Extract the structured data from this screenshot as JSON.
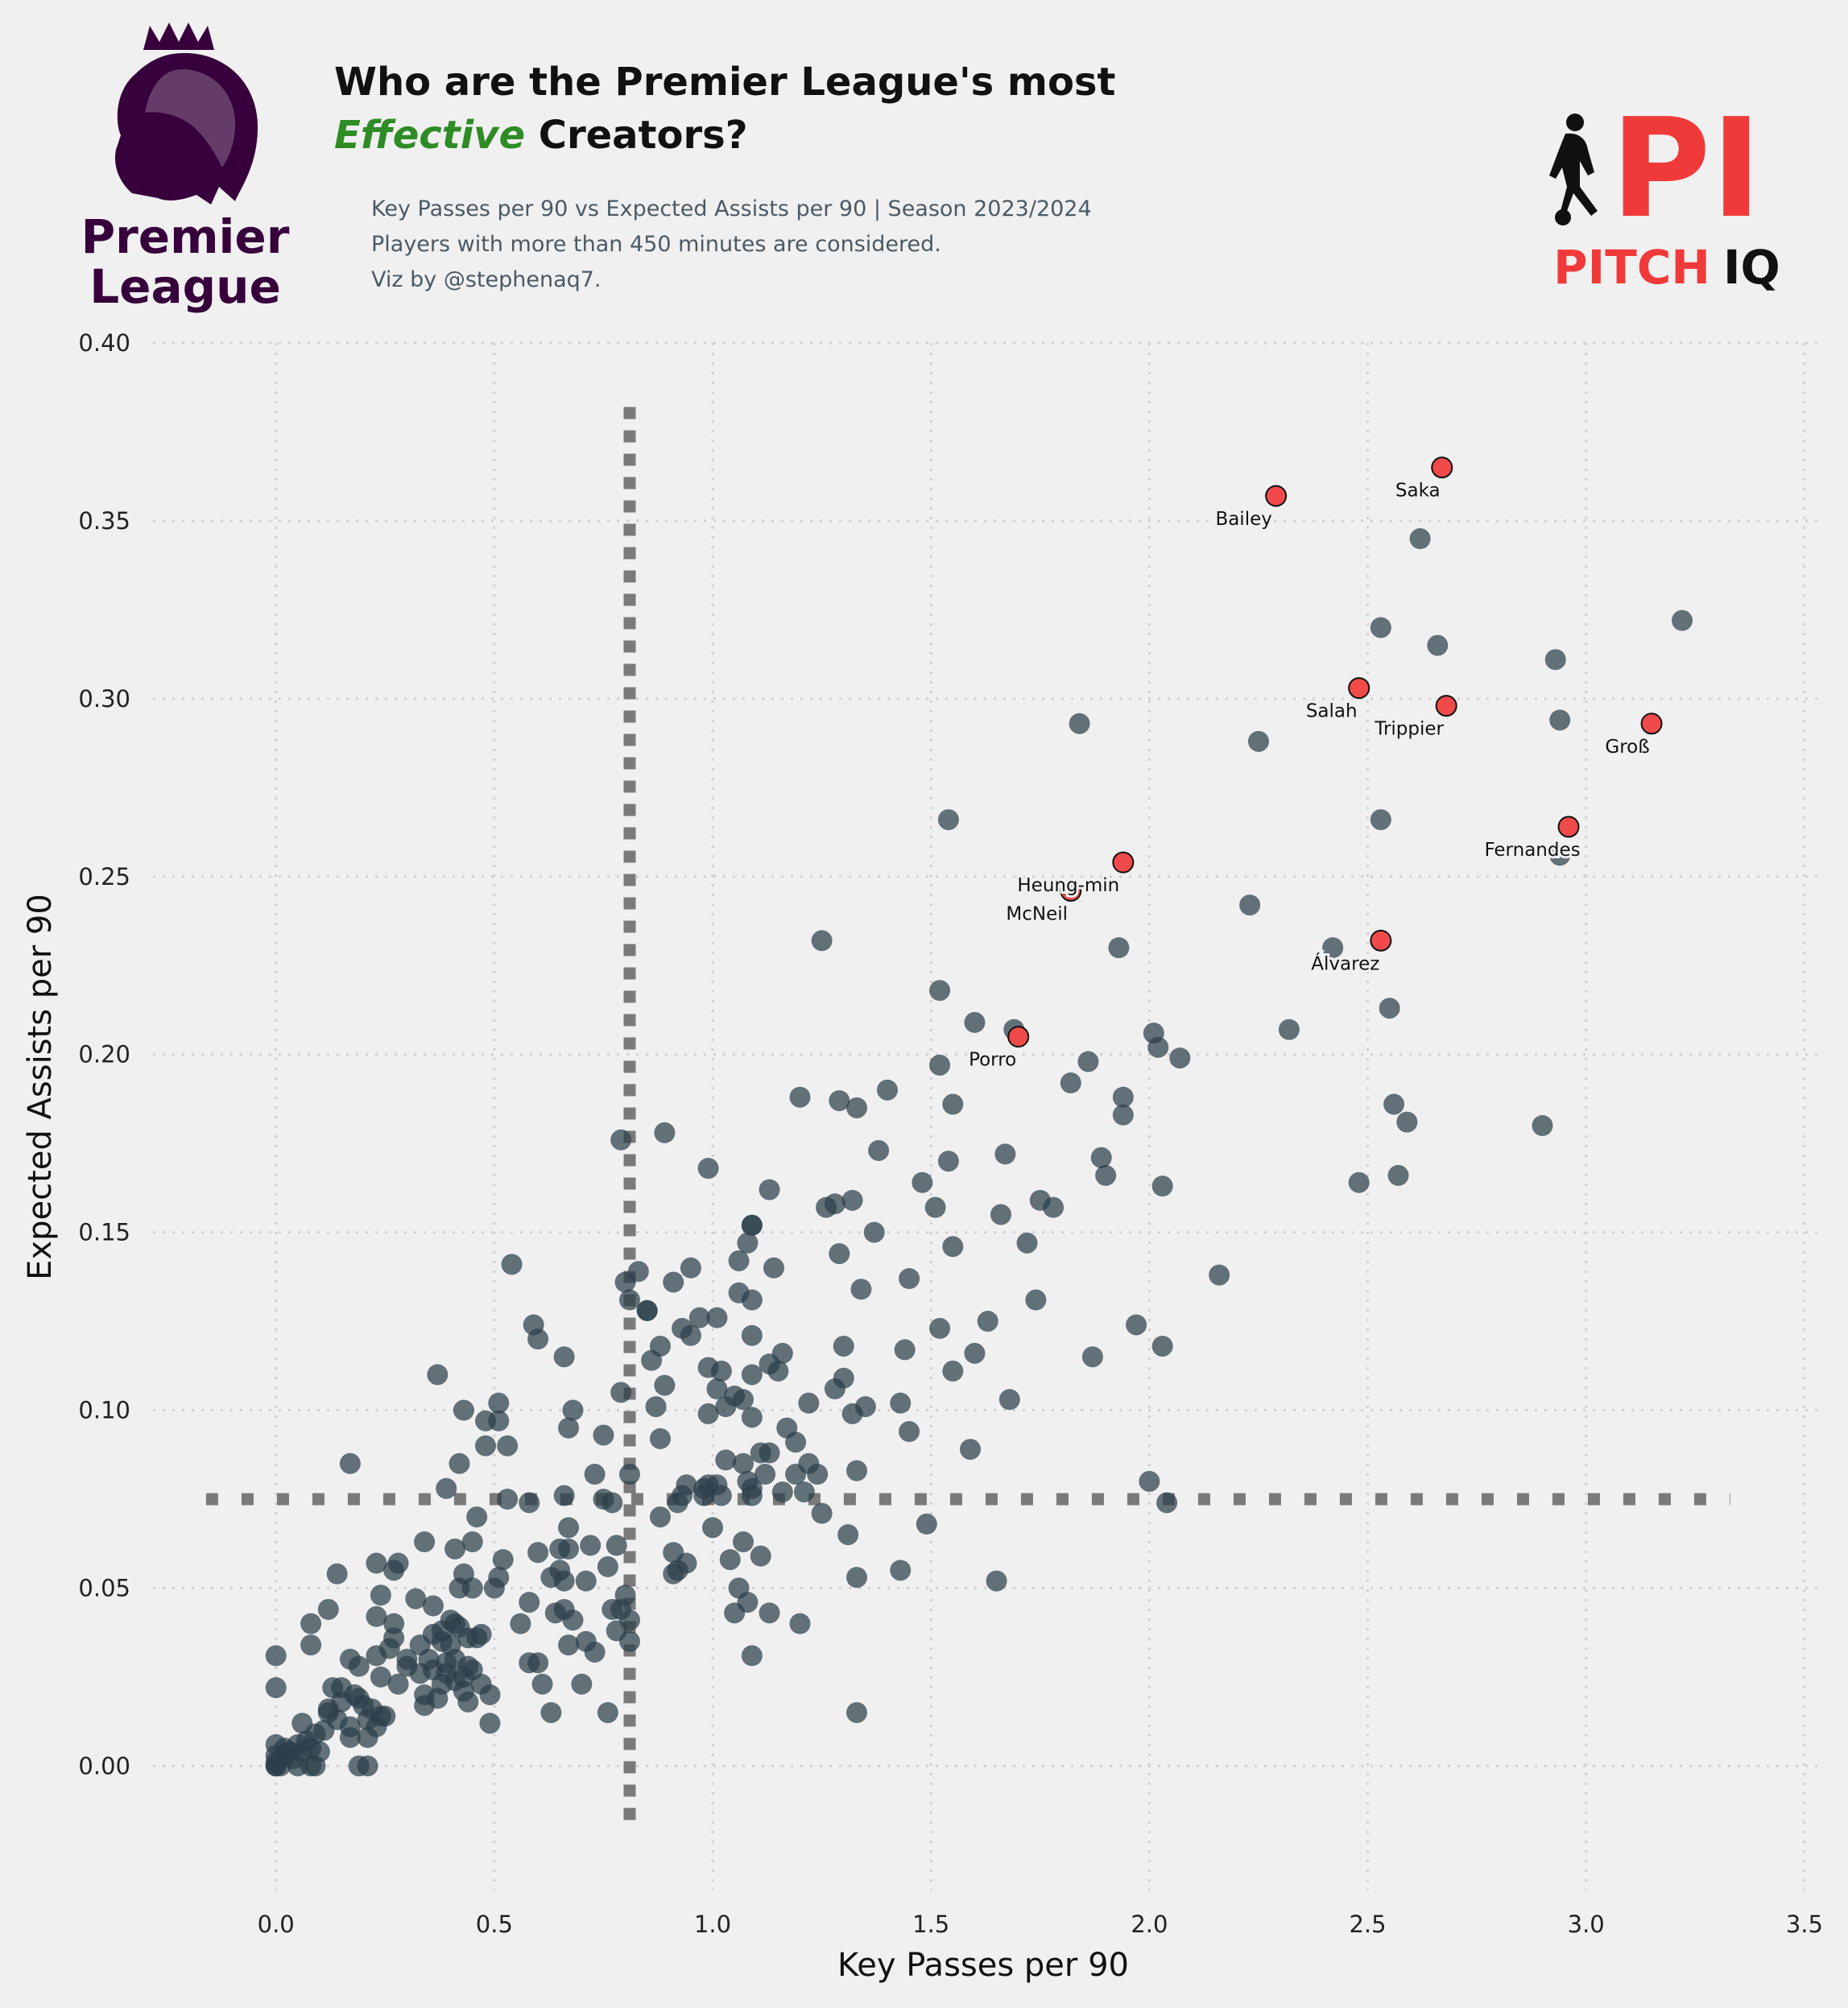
{
  "title": {
    "line1": "Who are the Premier League's most",
    "line2_emphasis": "Effective",
    "line2_rest": " Creators?",
    "emphasis_color": "#2e8b25"
  },
  "subtitle": {
    "line1": "Key Passes per 90 vs Expected Assists per 90 | Season 2023/2024",
    "line2": "Players with more than 450 minutes are considered.",
    "line3": "Viz by @stephenaq7."
  },
  "logos": {
    "left": {
      "icon": "premier-league-lion-icon",
      "text_line1": "Premier",
      "text_line2": "League",
      "color": "#37003c"
    },
    "right": {
      "icon": "pitch-iq-player-icon",
      "mark": "PI",
      "word1": "PITCH",
      "word2": "IQ",
      "color": "#f03a3a"
    }
  },
  "colors": {
    "background": "#f0f0f0",
    "point": "#2b3e4a",
    "highlight": "#f04a4a",
    "reference_line": "#7a7a7a",
    "grid": "#cfcfcf"
  },
  "chart_data": {
    "type": "scatter",
    "xlabel": "Key Passes per 90",
    "ylabel": "Expected Assists per 90",
    "xlim": [
      -0.3,
      3.55
    ],
    "ylim": [
      -0.035,
      0.4
    ],
    "xticks": [
      "0.0",
      "0.5",
      "1.0",
      "1.5",
      "2.0",
      "2.5",
      "3.0",
      "3.5"
    ],
    "yticks": [
      "0.00",
      "0.05",
      "0.10",
      "0.15",
      "0.20",
      "0.25",
      "0.30",
      "0.35",
      "0.40"
    ],
    "grid": true,
    "reference_lines": {
      "x": 0.81,
      "y": 0.075
    },
    "highlighted": [
      {
        "name": "Saka",
        "x": 2.67,
        "y": 0.365
      },
      {
        "name": "Bailey",
        "x": 2.29,
        "y": 0.357
      },
      {
        "name": "Salah",
        "x": 2.48,
        "y": 0.303
      },
      {
        "name": "Trippier",
        "x": 2.68,
        "y": 0.298
      },
      {
        "name": "Groß",
        "x": 3.15,
        "y": 0.293
      },
      {
        "name": "Fernandes",
        "x": 2.96,
        "y": 0.264
      },
      {
        "name": "Heung-min",
        "x": 1.94,
        "y": 0.254
      },
      {
        "name": "McNeil",
        "x": 1.82,
        "y": 0.246
      },
      {
        "name": "Álvarez",
        "x": 2.53,
        "y": 0.232
      },
      {
        "name": "Porro",
        "x": 1.7,
        "y": 0.205
      }
    ],
    "points": [
      [
        3.22,
        0.322
      ],
      [
        2.62,
        0.345
      ],
      [
        2.53,
        0.32
      ],
      [
        2.66,
        0.315
      ],
      [
        2.93,
        0.311
      ],
      [
        2.94,
        0.294
      ],
      [
        2.25,
        0.288
      ],
      [
        1.84,
        0.293
      ],
      [
        2.53,
        0.266
      ],
      [
        1.54,
        0.266
      ],
      [
        2.94,
        0.256
      ],
      [
        2.23,
        0.242
      ],
      [
        1.93,
        0.23
      ],
      [
        2.42,
        0.23
      ],
      [
        1.25,
        0.232
      ],
      [
        1.52,
        0.218
      ],
      [
        2.55,
        0.213
      ],
      [
        1.6,
        0.209
      ],
      [
        2.32,
        0.207
      ],
      [
        2.01,
        0.206
      ],
      [
        1.69,
        0.207
      ],
      [
        2.02,
        0.202
      ],
      [
        2.07,
        0.199
      ],
      [
        1.86,
        0.198
      ],
      [
        1.52,
        0.197
      ],
      [
        1.82,
        0.192
      ],
      [
        1.4,
        0.19
      ],
      [
        1.94,
        0.188
      ],
      [
        1.2,
        0.188
      ],
      [
        1.29,
        0.187
      ],
      [
        1.55,
        0.186
      ],
      [
        1.33,
        0.185
      ],
      [
        1.94,
        0.183
      ],
      [
        2.56,
        0.186
      ],
      [
        2.59,
        0.181
      ],
      [
        2.9,
        0.18
      ],
      [
        0.89,
        0.178
      ],
      [
        0.79,
        0.176
      ],
      [
        1.38,
        0.173
      ],
      [
        1.67,
        0.172
      ],
      [
        1.89,
        0.171
      ],
      [
        1.54,
        0.17
      ],
      [
        0.99,
        0.168
      ],
      [
        2.57,
        0.166
      ],
      [
        1.9,
        0.166
      ],
      [
        1.48,
        0.164
      ],
      [
        2.48,
        0.164
      ],
      [
        2.03,
        0.163
      ],
      [
        1.13,
        0.162
      ],
      [
        1.32,
        0.159
      ],
      [
        1.75,
        0.159
      ],
      [
        1.28,
        0.158
      ],
      [
        1.51,
        0.157
      ],
      [
        1.78,
        0.157
      ],
      [
        1.26,
        0.157
      ],
      [
        1.66,
        0.155
      ],
      [
        1.09,
        0.152
      ],
      [
        1.09,
        0.152
      ],
      [
        1.37,
        0.15
      ],
      [
        1.08,
        0.147
      ],
      [
        1.72,
        0.147
      ],
      [
        1.55,
        0.146
      ],
      [
        1.29,
        0.144
      ],
      [
        1.06,
        0.142
      ],
      [
        0.54,
        0.141
      ],
      [
        0.95,
        0.14
      ],
      [
        1.14,
        0.14
      ],
      [
        0.83,
        0.139
      ],
      [
        2.16,
        0.138
      ],
      [
        1.45,
        0.137
      ],
      [
        0.91,
        0.136
      ],
      [
        0.8,
        0.136
      ],
      [
        1.34,
        0.134
      ],
      [
        1.06,
        0.133
      ],
      [
        1.09,
        0.131
      ],
      [
        0.81,
        0.131
      ],
      [
        1.74,
        0.131
      ],
      [
        0.85,
        0.128
      ],
      [
        0.85,
        0.128
      ],
      [
        0.97,
        0.126
      ],
      [
        1.01,
        0.126
      ],
      [
        1.63,
        0.125
      ],
      [
        0.59,
        0.124
      ],
      [
        0.93,
        0.123
      ],
      [
        1.52,
        0.123
      ],
      [
        1.97,
        0.124
      ],
      [
        0.95,
        0.121
      ],
      [
        1.09,
        0.121
      ],
      [
        0.6,
        0.12
      ],
      [
        0.88,
        0.118
      ],
      [
        2.03,
        0.118
      ],
      [
        1.3,
        0.118
      ],
      [
        1.44,
        0.117
      ],
      [
        1.16,
        0.116
      ],
      [
        1.6,
        0.116
      ],
      [
        0.66,
        0.115
      ],
      [
        1.87,
        0.115
      ],
      [
        0.86,
        0.114
      ],
      [
        1.13,
        0.113
      ],
      [
        0.99,
        0.112
      ],
      [
        1.15,
        0.111
      ],
      [
        1.02,
        0.111
      ],
      [
        1.55,
        0.111
      ],
      [
        0.37,
        0.11
      ],
      [
        1.09,
        0.11
      ],
      [
        1.3,
        0.109
      ],
      [
        0.89,
        0.107
      ],
      [
        1.01,
        0.106
      ],
      [
        1.28,
        0.106
      ],
      [
        0.79,
        0.105
      ],
      [
        1.05,
        0.104
      ],
      [
        1.07,
        0.103
      ],
      [
        1.68,
        0.103
      ],
      [
        1.43,
        0.102
      ],
      [
        1.22,
        0.102
      ],
      [
        0.51,
        0.102
      ],
      [
        1.35,
        0.101
      ],
      [
        0.87,
        0.101
      ],
      [
        1.03,
        0.101
      ],
      [
        0.68,
        0.1
      ],
      [
        0.43,
        0.1
      ],
      [
        0.99,
        0.099
      ],
      [
        1.32,
        0.099
      ],
      [
        1.09,
        0.098
      ],
      [
        0.48,
        0.097
      ],
      [
        0.51,
        0.097
      ],
      [
        1.17,
        0.095
      ],
      [
        0.67,
        0.095
      ],
      [
        1.45,
        0.094
      ],
      [
        0.75,
        0.093
      ],
      [
        0.88,
        0.092
      ],
      [
        1.19,
        0.091
      ],
      [
        0.48,
        0.09
      ],
      [
        0.53,
        0.09
      ],
      [
        1.59,
        0.089
      ],
      [
        1.11,
        0.088
      ],
      [
        1.13,
        0.088
      ],
      [
        1.03,
        0.086
      ],
      [
        0.42,
        0.085
      ],
      [
        0.17,
        0.085
      ],
      [
        1.22,
        0.085
      ],
      [
        1.07,
        0.085
      ],
      [
        1.33,
        0.083
      ],
      [
        1.19,
        0.082
      ],
      [
        1.24,
        0.082
      ],
      [
        0.81,
        0.082
      ],
      [
        1.12,
        0.082
      ],
      [
        0.73,
        0.082
      ],
      [
        1.08,
        0.08
      ],
      [
        2.0,
        0.08
      ],
      [
        0.94,
        0.079
      ],
      [
        1.01,
        0.079
      ],
      [
        0.99,
        0.079
      ],
      [
        0.98,
        0.078
      ],
      [
        1.09,
        0.078
      ],
      [
        0.39,
        0.078
      ],
      [
        1.21,
        0.077
      ],
      [
        1.16,
        0.077
      ],
      [
        1.02,
        0.076
      ],
      [
        0.93,
        0.076
      ],
      [
        0.98,
        0.076
      ],
      [
        1.09,
        0.076
      ],
      [
        0.66,
        0.076
      ],
      [
        0.53,
        0.075
      ],
      [
        0.75,
        0.075
      ],
      [
        0.77,
        0.074
      ],
      [
        2.04,
        0.074
      ],
      [
        0.58,
        0.074
      ],
      [
        0.92,
        0.074
      ],
      [
        1.25,
        0.071
      ],
      [
        0.88,
        0.07
      ],
      [
        0.46,
        0.07
      ],
      [
        1.49,
        0.068
      ],
      [
        1.0,
        0.067
      ],
      [
        0.67,
        0.067
      ],
      [
        1.31,
        0.065
      ],
      [
        0.34,
        0.063
      ],
      [
        1.07,
        0.063
      ],
      [
        0.72,
        0.062
      ],
      [
        0.78,
        0.062
      ],
      [
        0.45,
        0.063
      ],
      [
        0.41,
        0.061
      ],
      [
        0.67,
        0.061
      ],
      [
        0.65,
        0.061
      ],
      [
        0.6,
        0.06
      ],
      [
        0.91,
        0.06
      ],
      [
        1.11,
        0.059
      ],
      [
        0.52,
        0.058
      ],
      [
        1.04,
        0.058
      ],
      [
        0.23,
        0.057
      ],
      [
        0.28,
        0.057
      ],
      [
        0.76,
        0.056
      ],
      [
        0.94,
        0.057
      ],
      [
        0.27,
        0.055
      ],
      [
        0.65,
        0.055
      ],
      [
        1.43,
        0.055
      ],
      [
        0.14,
        0.054
      ],
      [
        0.91,
        0.054
      ],
      [
        0.92,
        0.055
      ],
      [
        0.43,
        0.054
      ],
      [
        0.51,
        0.053
      ],
      [
        0.63,
        0.053
      ],
      [
        1.33,
        0.053
      ],
      [
        0.66,
        0.052
      ],
      [
        0.71,
        0.052
      ],
      [
        1.65,
        0.052
      ],
      [
        0.45,
        0.05
      ],
      [
        0.42,
        0.05
      ],
      [
        0.5,
        0.05
      ],
      [
        1.06,
        0.05
      ],
      [
        0.24,
        0.048
      ],
      [
        0.8,
        0.048
      ],
      [
        1.08,
        0.046
      ],
      [
        0.32,
        0.047
      ],
      [
        0.58,
        0.046
      ],
      [
        0.36,
        0.045
      ],
      [
        0.12,
        0.044
      ],
      [
        0.64,
        0.043
      ],
      [
        0.66,
        0.044
      ],
      [
        0.77,
        0.044
      ],
      [
        0.79,
        0.044
      ],
      [
        1.05,
        0.043
      ],
      [
        1.13,
        0.043
      ],
      [
        0.23,
        0.042
      ],
      [
        0.56,
        0.04
      ],
      [
        0.81,
        0.041
      ],
      [
        0.08,
        0.04
      ],
      [
        0.27,
        0.04
      ],
      [
        0.41,
        0.04
      ],
      [
        0.4,
        0.041
      ],
      [
        0.68,
        0.041
      ],
      [
        1.2,
        0.04
      ],
      [
        0.38,
        0.038
      ],
      [
        0.46,
        0.036
      ],
      [
        0.78,
        0.038
      ],
      [
        0.44,
        0.036
      ],
      [
        0.36,
        0.037
      ],
      [
        0.27,
        0.036
      ],
      [
        0.71,
        0.035
      ],
      [
        0.81,
        0.035
      ],
      [
        0.4,
        0.034
      ],
      [
        0.33,
        0.034
      ],
      [
        0.08,
        0.034
      ],
      [
        0.67,
        0.034
      ],
      [
        0.73,
        0.032
      ],
      [
        1.09,
        0.031
      ],
      [
        0.0,
        0.031
      ],
      [
        0.23,
        0.031
      ],
      [
        0.17,
        0.03
      ],
      [
        0.3,
        0.03
      ],
      [
        0.6,
        0.029
      ],
      [
        0.58,
        0.029
      ],
      [
        0.39,
        0.029
      ],
      [
        0.44,
        0.028
      ],
      [
        0.19,
        0.028
      ],
      [
        0.36,
        0.027
      ],
      [
        0.33,
        0.026
      ],
      [
        0.43,
        0.025
      ],
      [
        0.24,
        0.025
      ],
      [
        0.41,
        0.024
      ],
      [
        0.47,
        0.023
      ],
      [
        0.7,
        0.023
      ],
      [
        0.28,
        0.023
      ],
      [
        0.61,
        0.023
      ],
      [
        0.38,
        0.023
      ],
      [
        0.0,
        0.022
      ],
      [
        0.13,
        0.022
      ],
      [
        0.15,
        0.022
      ],
      [
        0.43,
        0.021
      ],
      [
        0.49,
        0.02
      ],
      [
        0.34,
        0.02
      ],
      [
        0.19,
        0.019
      ],
      [
        0.37,
        0.019
      ],
      [
        0.44,
        0.018
      ],
      [
        0.34,
        0.017
      ],
      [
        0.22,
        0.016
      ],
      [
        0.12,
        0.015
      ],
      [
        0.63,
        0.015
      ],
      [
        0.76,
        0.015
      ],
      [
        1.33,
        0.015
      ],
      [
        0.24,
        0.014
      ],
      [
        0.21,
        0.013
      ],
      [
        0.14,
        0.013
      ],
      [
        0.06,
        0.012
      ],
      [
        0.49,
        0.012
      ],
      [
        0.17,
        0.011
      ],
      [
        0.23,
        0.011
      ],
      [
        0.11,
        0.01
      ],
      [
        0.09,
        0.009
      ],
      [
        0.17,
        0.008
      ],
      [
        0.21,
        0.008
      ],
      [
        0.07,
        0.007
      ],
      [
        0.05,
        0.006
      ],
      [
        0.0,
        0.006
      ],
      [
        0.08,
        0.005
      ],
      [
        0.03,
        0.004
      ],
      [
        0.1,
        0.004
      ],
      [
        0.0,
        0.003
      ],
      [
        0.04,
        0.002
      ],
      [
        0.0,
        0.001
      ],
      [
        0.0,
        0.0
      ],
      [
        0.05,
        0.0
      ],
      [
        0.08,
        0.0
      ],
      [
        0.09,
        0.0
      ],
      [
        0.19,
        0.0
      ],
      [
        0.21,
        0.0
      ],
      [
        0.0,
        0.0
      ],
      [
        0.01,
        0.0
      ],
      [
        0.02,
        0.003
      ],
      [
        0.06,
        0.004
      ],
      [
        0.38,
        0.035
      ],
      [
        0.35,
        0.03
      ],
      [
        0.45,
        0.027
      ],
      [
        0.39,
        0.026
      ],
      [
        0.3,
        0.028
      ],
      [
        0.26,
        0.033
      ],
      [
        0.41,
        0.03
      ],
      [
        0.42,
        0.039
      ],
      [
        0.2,
        0.017
      ],
      [
        0.15,
        0.018
      ],
      [
        0.25,
        0.014
      ],
      [
        0.18,
        0.02
      ],
      [
        0.12,
        0.016
      ],
      [
        0.02,
        0.005
      ],
      [
        0.47,
        0.037
      ]
    ]
  }
}
